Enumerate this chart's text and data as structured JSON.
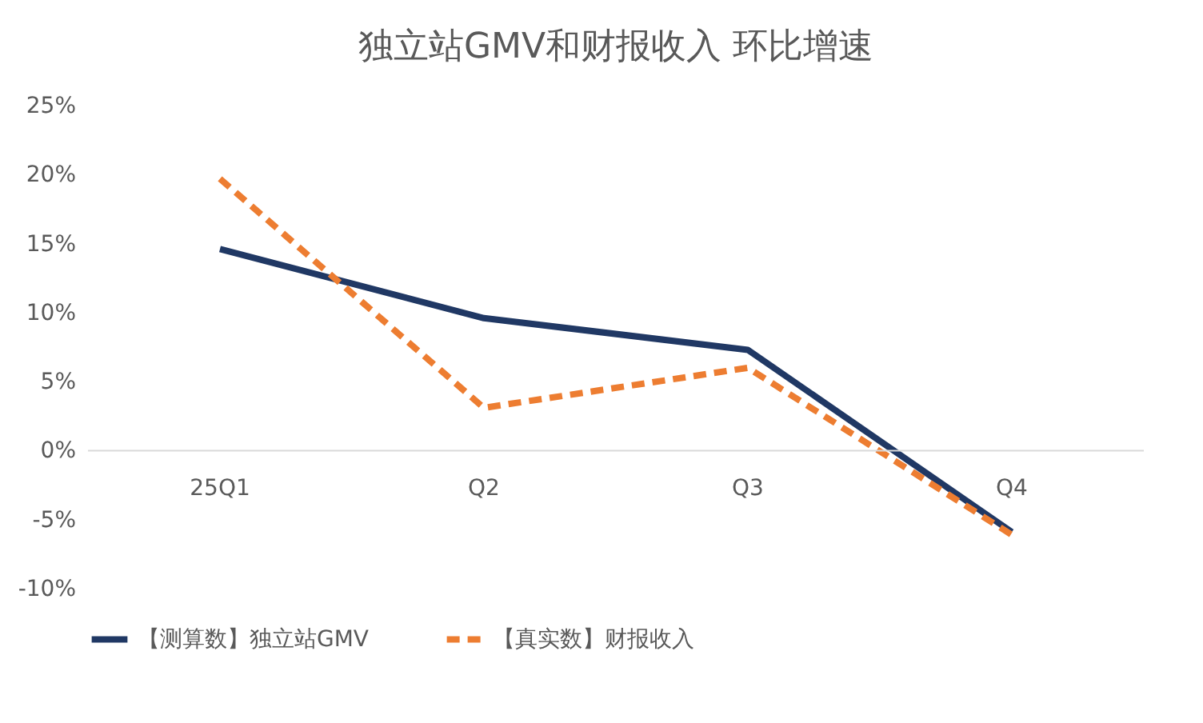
{
  "chart_data": {
    "type": "line",
    "title": "独立站GMV和财报收入 环比增速",
    "categories": [
      "25Q1",
      "Q2",
      "Q3",
      "Q4"
    ],
    "series": [
      {
        "name": "【测算数】独立站GMV",
        "color": "#203864",
        "values": [
          14.6,
          9.6,
          7.3,
          -5.9
        ],
        "line_style": "solid"
      },
      {
        "name": "【真实数】财报收入",
        "color": "#ed7d31",
        "values": [
          19.7,
          3.1,
          6.0,
          -6.1
        ],
        "line_style": "dashed"
      }
    ],
    "ylim": [
      -10,
      25
    ],
    "yticks": [
      {
        "value": -10,
        "label": "-10%"
      },
      {
        "value": -5,
        "label": "-5%"
      },
      {
        "value": 0,
        "label": "0%"
      },
      {
        "value": 5,
        "label": "5%"
      },
      {
        "value": 10,
        "label": "10%"
      },
      {
        "value": 15,
        "label": "15%"
      },
      {
        "value": 20,
        "label": "20%"
      },
      {
        "value": 25,
        "label": "25%"
      }
    ],
    "grid": false,
    "legend": "bottom",
    "marker": "none"
  }
}
